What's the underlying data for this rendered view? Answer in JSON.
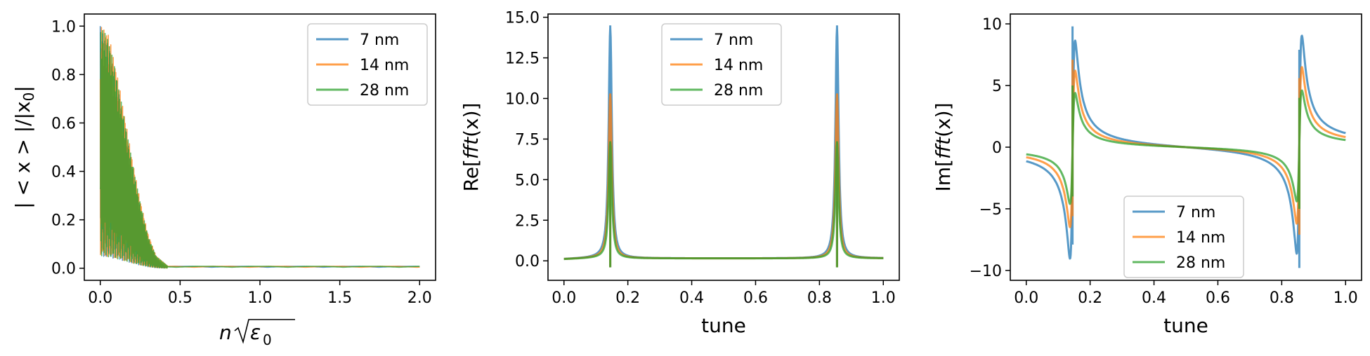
{
  "chart_data": [
    {
      "type": "line",
      "xlabel_parts": [
        "n",
        "ε",
        "0"
      ],
      "ylabel": "| < x > |/|x",
      "ylabel_sub": "0",
      "ylabel_end": "|",
      "xlim": [
        -0.1,
        2.1
      ],
      "ylim": [
        -0.05,
        1.05
      ],
      "xticks": [
        0.0,
        0.5,
        1.0,
        1.5,
        2.0
      ],
      "xtick_labels": [
        "0.0",
        "0.5",
        "1.0",
        "1.5",
        "2.0"
      ],
      "yticks": [
        0.0,
        0.2,
        0.4,
        0.6,
        0.8,
        1.0
      ],
      "ytick_labels": [
        "0.0",
        "0.2",
        "0.4",
        "0.6",
        "0.8",
        "1.0"
      ],
      "legend_loc": "upper right",
      "grid": false,
      "series": [
        {
          "name": "7 nm",
          "color": "#1f77b4",
          "decay_end": 0.4,
          "peaks": [
            [
              0.0,
              1.0
            ],
            [
              0.05,
              0.92
            ],
            [
              0.1,
              0.78
            ],
            [
              0.15,
              0.6
            ],
            [
              0.2,
              0.42
            ],
            [
              0.25,
              0.25
            ],
            [
              0.3,
              0.12
            ],
            [
              0.35,
              0.04
            ],
            [
              0.4,
              0.01
            ],
            [
              2.0,
              0.0
            ]
          ]
        },
        {
          "name": "14 nm",
          "color": "#ff7f0e",
          "decay_end": 0.42,
          "peaks": [
            [
              0.0,
              1.0
            ],
            [
              0.05,
              0.97
            ],
            [
              0.1,
              0.82
            ],
            [
              0.15,
              0.64
            ],
            [
              0.2,
              0.45
            ],
            [
              0.25,
              0.28
            ],
            [
              0.3,
              0.14
            ],
            [
              0.35,
              0.05
            ],
            [
              0.42,
              0.01
            ],
            [
              2.0,
              0.0
            ]
          ]
        },
        {
          "name": "28 nm",
          "color": "#2ca02c",
          "decay_end": 0.42,
          "peaks": [
            [
              0.0,
              1.0
            ],
            [
              0.05,
              0.95
            ],
            [
              0.1,
              0.8
            ],
            [
              0.15,
              0.62
            ],
            [
              0.2,
              0.44
            ],
            [
              0.25,
              0.27
            ],
            [
              0.3,
              0.13
            ],
            [
              0.35,
              0.05
            ],
            [
              0.42,
              0.01
            ],
            [
              2.0,
              0.0
            ]
          ]
        }
      ]
    },
    {
      "type": "line",
      "xlabel": "tune",
      "ylabel": "Re[",
      "ylabel_ital": "fft",
      "ylabel_end": "(x)]",
      "xlim": [
        -0.05,
        1.05
      ],
      "ylim": [
        -1.2,
        15.2
      ],
      "xticks": [
        0.0,
        0.2,
        0.4,
        0.6,
        0.8,
        1.0
      ],
      "xtick_labels": [
        "0.0",
        "0.2",
        "0.4",
        "0.6",
        "0.8",
        "1.0"
      ],
      "yticks": [
        0.0,
        2.5,
        5.0,
        7.5,
        10.0,
        12.5,
        15.0
      ],
      "ytick_labels": [
        "0.0",
        "2.5",
        "5.0",
        "7.5",
        "10.0",
        "12.5",
        "15.0"
      ],
      "legend_loc": "upper center",
      "grid": false,
      "peak_tunes": [
        0.145,
        0.855
      ],
      "series": [
        {
          "name": "7 nm",
          "color": "#1f77b4",
          "peak": 14.5
        },
        {
          "name": "14 nm",
          "color": "#ff7f0e",
          "peak": 10.3
        },
        {
          "name": "28 nm",
          "color": "#2ca02c",
          "peak": 7.3
        }
      ]
    },
    {
      "type": "line",
      "xlabel": "tune",
      "ylabel": "Im[",
      "ylabel_ital": "fft",
      "ylabel_end": "(x)]",
      "xlim": [
        -0.05,
        1.05
      ],
      "ylim": [
        -10.8,
        10.8
      ],
      "xticks": [
        0.0,
        0.2,
        0.4,
        0.6,
        0.8,
        1.0
      ],
      "xtick_labels": [
        "0.0",
        "0.2",
        "0.4",
        "0.6",
        "0.8",
        "1.0"
      ],
      "yticks": [
        -10,
        -5,
        0,
        5,
        10
      ],
      "ytick_labels": [
        "−10",
        "−5",
        "0",
        "5",
        "10"
      ],
      "legend_loc": "lower center",
      "grid": false,
      "peak_tunes": [
        0.145,
        0.855
      ],
      "series": [
        {
          "name": "7 nm",
          "color": "#1f77b4",
          "peak1": [
            9.8,
            -7.9
          ],
          "peak2": [
            7.9,
            -9.8
          ]
        },
        {
          "name": "14 nm",
          "color": "#ff7f0e",
          "peak1": [
            7.1,
            -5.6
          ],
          "peak2": [
            5.6,
            -7.1
          ]
        },
        {
          "name": "28 nm",
          "color": "#2ca02c",
          "peak1": [
            5.0,
            -4.0
          ],
          "peak2": [
            4.0,
            -5.0
          ]
        }
      ]
    }
  ]
}
